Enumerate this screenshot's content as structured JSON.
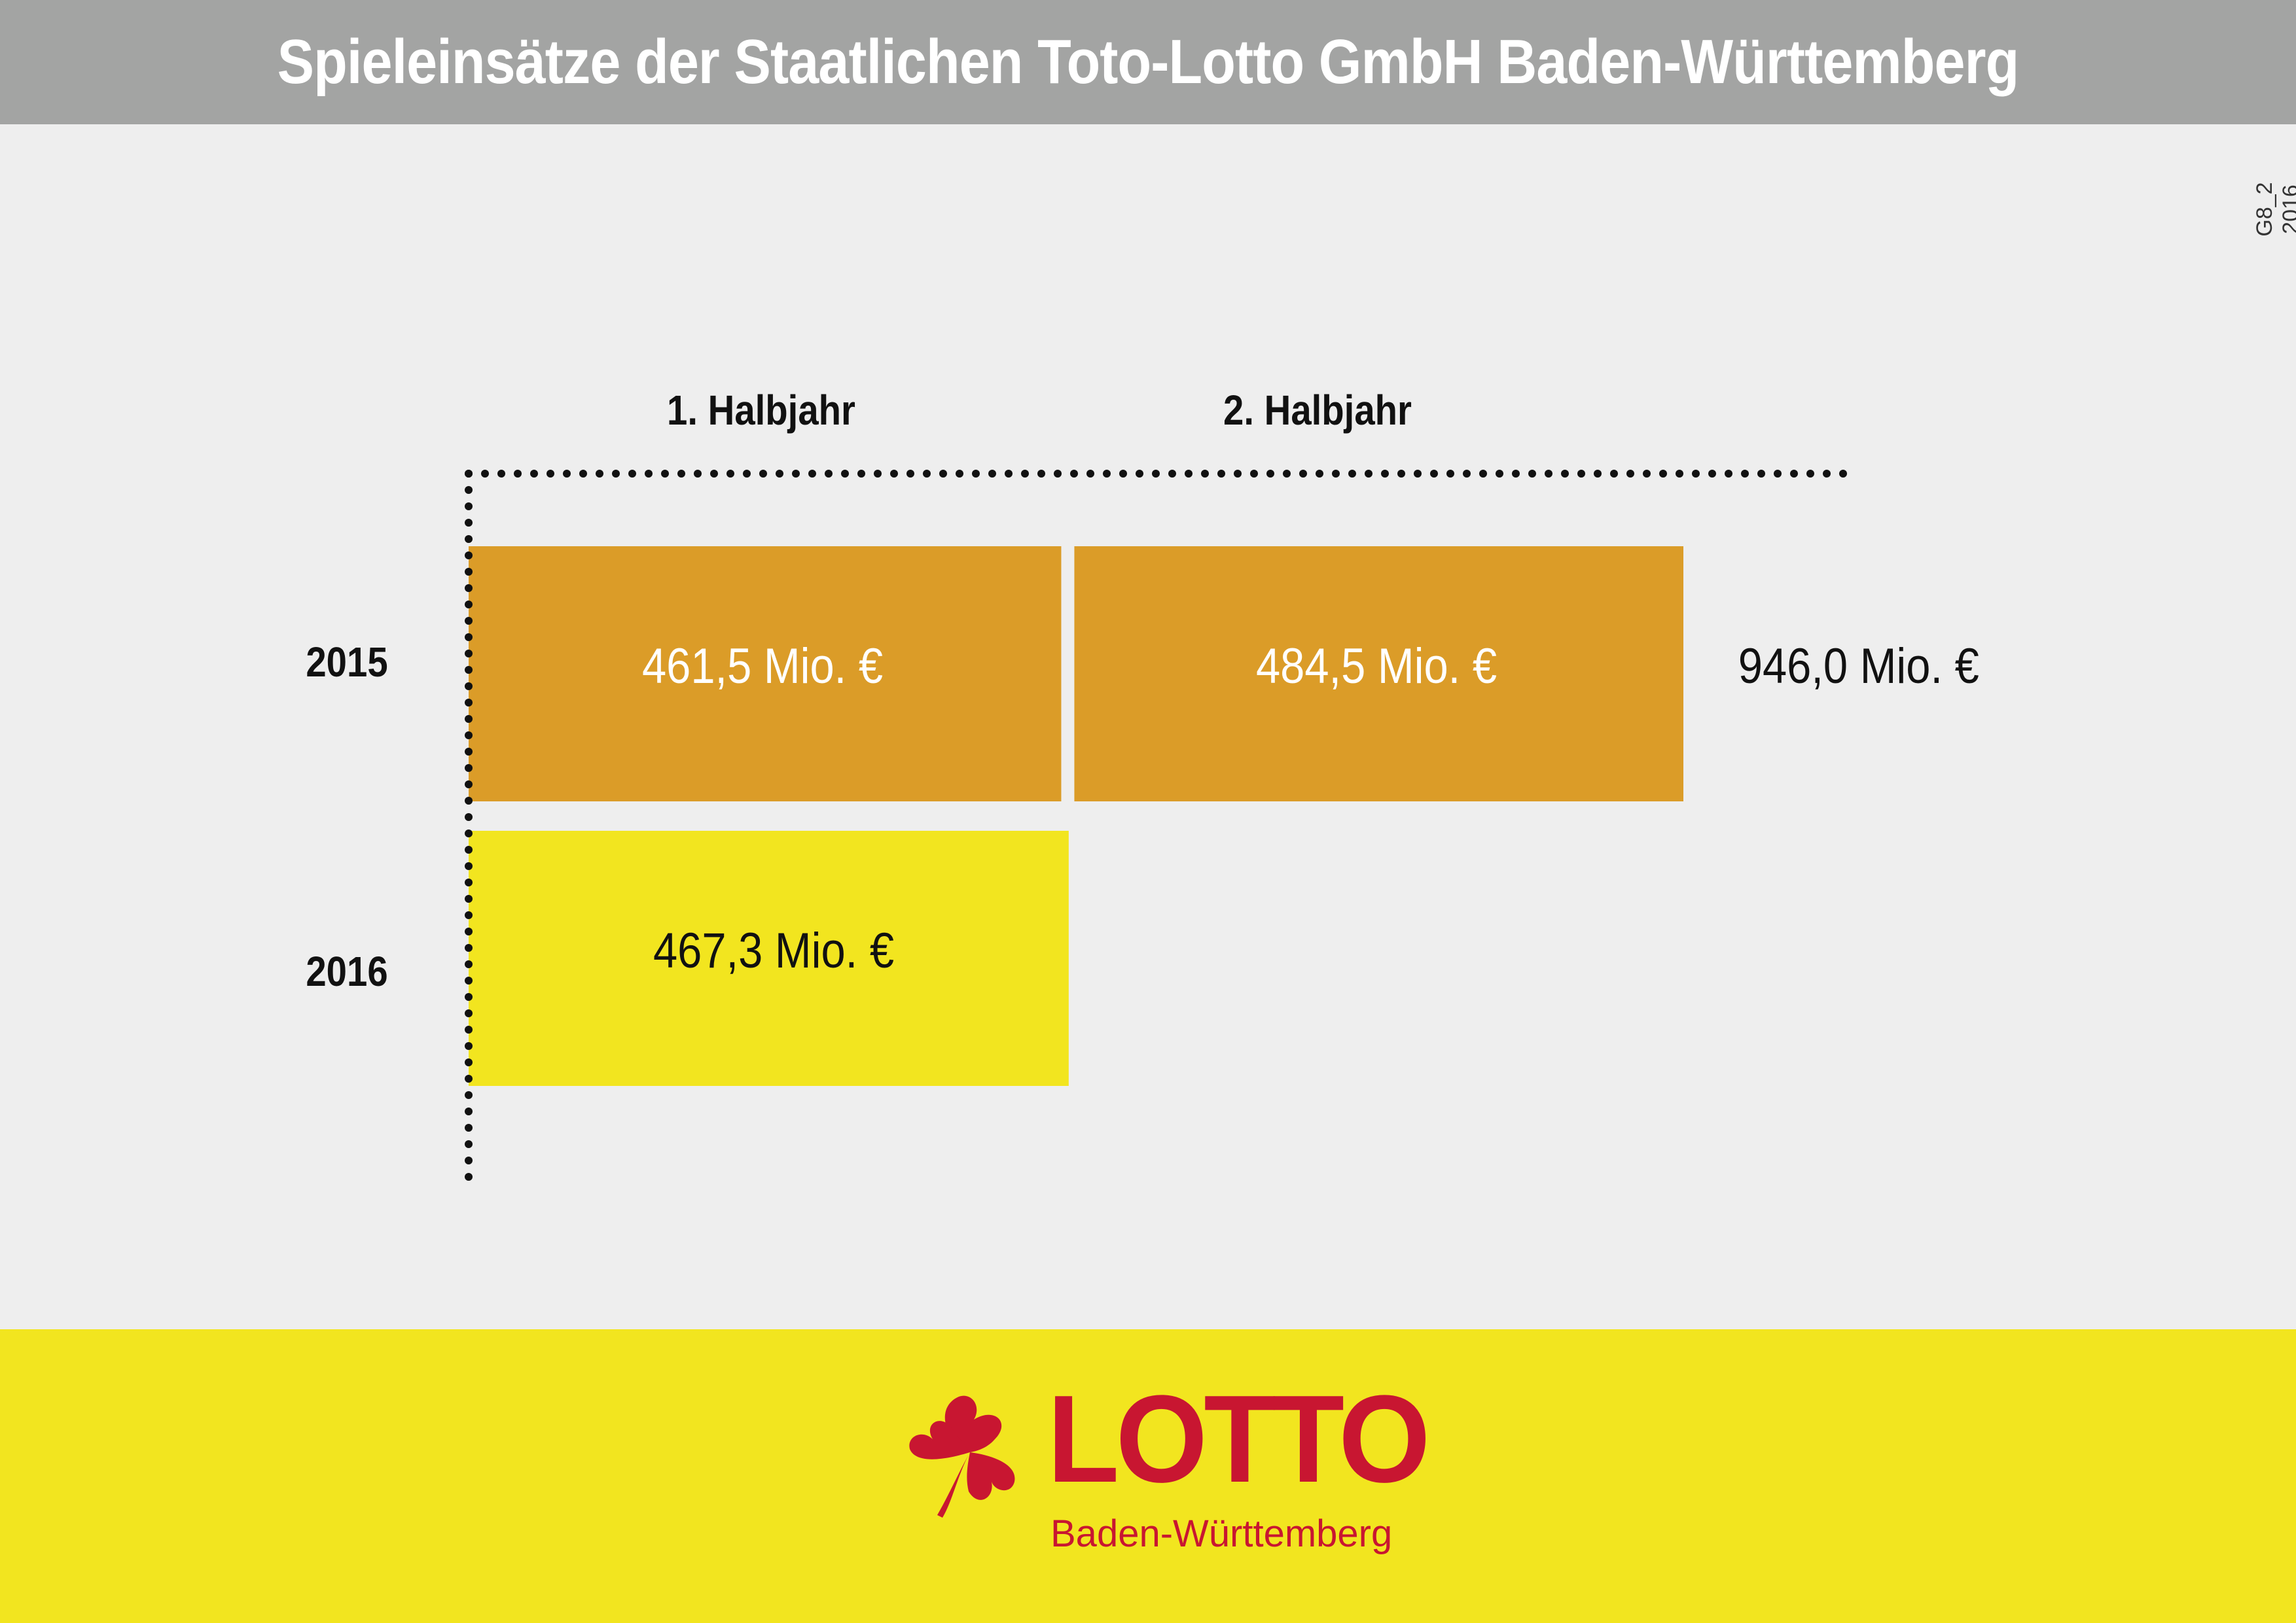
{
  "header": {
    "title": "Spieleinsätze der Staatlichen Toto-Lotto GmbH Baden-Württemberg"
  },
  "code_label": "G8_2 2016",
  "chart_data": {
    "type": "bar",
    "orientation": "horizontal-stacked",
    "categories": [
      "2015",
      "2016"
    ],
    "columns": [
      "1. Halbjahr",
      "2. Halbjahr"
    ],
    "series": [
      {
        "name": "1. Halbjahr",
        "values": [
          461.5,
          467.3
        ],
        "labels": [
          "461,5 Mio. €",
          "467,3 Mio. €"
        ]
      },
      {
        "name": "2. Halbjahr",
        "values": [
          484.5,
          null
        ],
        "labels": [
          "484,5 Mio. €",
          ""
        ]
      }
    ],
    "totals": [
      {
        "category": "2015",
        "value": 946.0,
        "label": "946,0 Mio. €"
      }
    ],
    "unit": "Mio. €",
    "xlim": [
      0,
      946.0
    ],
    "colors": {
      "2015": "#db9c28",
      "2016": "#f2e51f",
      "axis": "#111111"
    },
    "grid": false
  },
  "footer": {
    "logo_word": "LOTTO",
    "logo_sub": "Baden-Württemberg",
    "logo_icon": "clover-icon",
    "colors": {
      "background": "#f2e51f",
      "brand": "#c81631"
    }
  }
}
